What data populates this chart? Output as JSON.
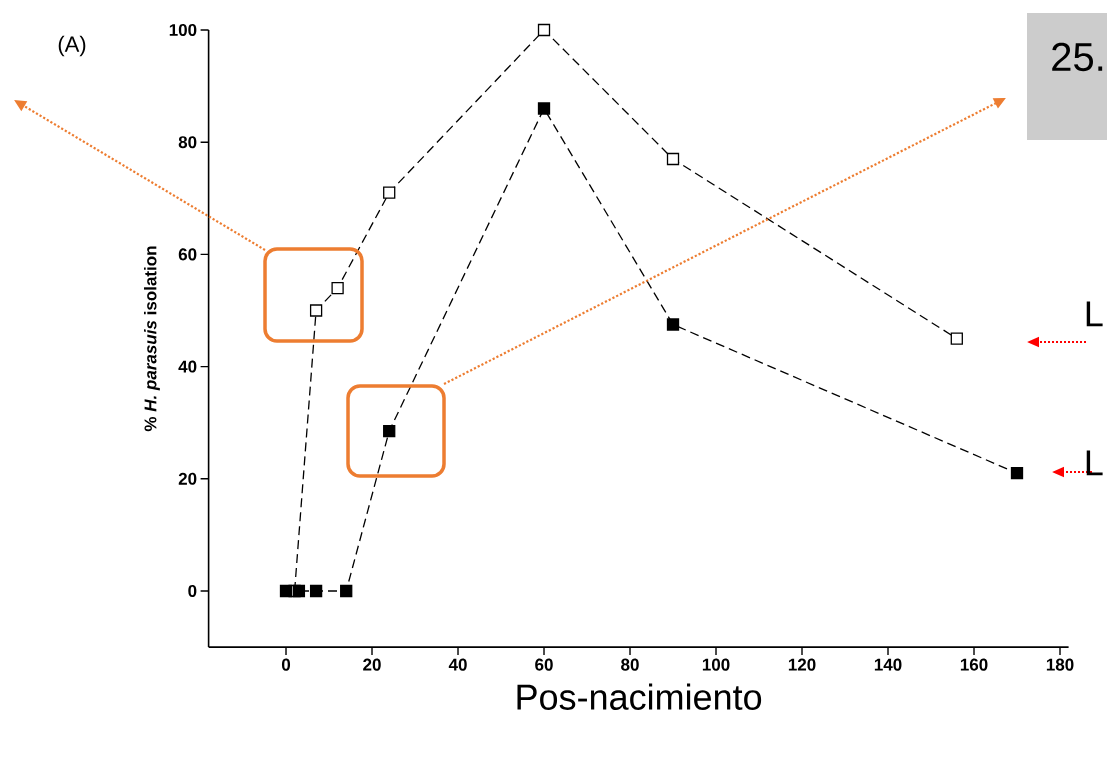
{
  "chart_data": {
    "type": "line",
    "xlabel": "Pos-nacimiento",
    "ylabel": "% *H. parasuis* isolation",
    "xlim": [
      -18,
      182
    ],
    "ylim": [
      -10,
      100
    ],
    "xticks": [
      0,
      20,
      40,
      60,
      80,
      100,
      120,
      140,
      160,
      180
    ],
    "yticks": [
      0,
      20,
      40,
      60,
      80,
      100
    ],
    "marker": "square",
    "line_style": "dashed",
    "series": [
      {
        "color": "#000000",
        "colors": [
          "#ffffff",
          "#ffffff",
          "#ffffff",
          "#ffffff",
          "#ffffff",
          "#ffffff",
          "#ffffff"
        ],
        "x": [
          2,
          7,
          12,
          24,
          60,
          90,
          156
        ],
        "values": [
          0,
          50,
          54,
          71,
          100,
          77,
          45
        ]
      },
      {
        "color": "#000000",
        "x": [
          0,
          3,
          7,
          14,
          24,
          60,
          90,
          170
        ],
        "values": [
          0,
          0,
          0,
          0,
          28.5,
          86,
          47.5,
          21
        ]
      }
    ],
    "annotations": [
      "(A)",
      "25.",
      "L",
      "L"
    ]
  }
}
